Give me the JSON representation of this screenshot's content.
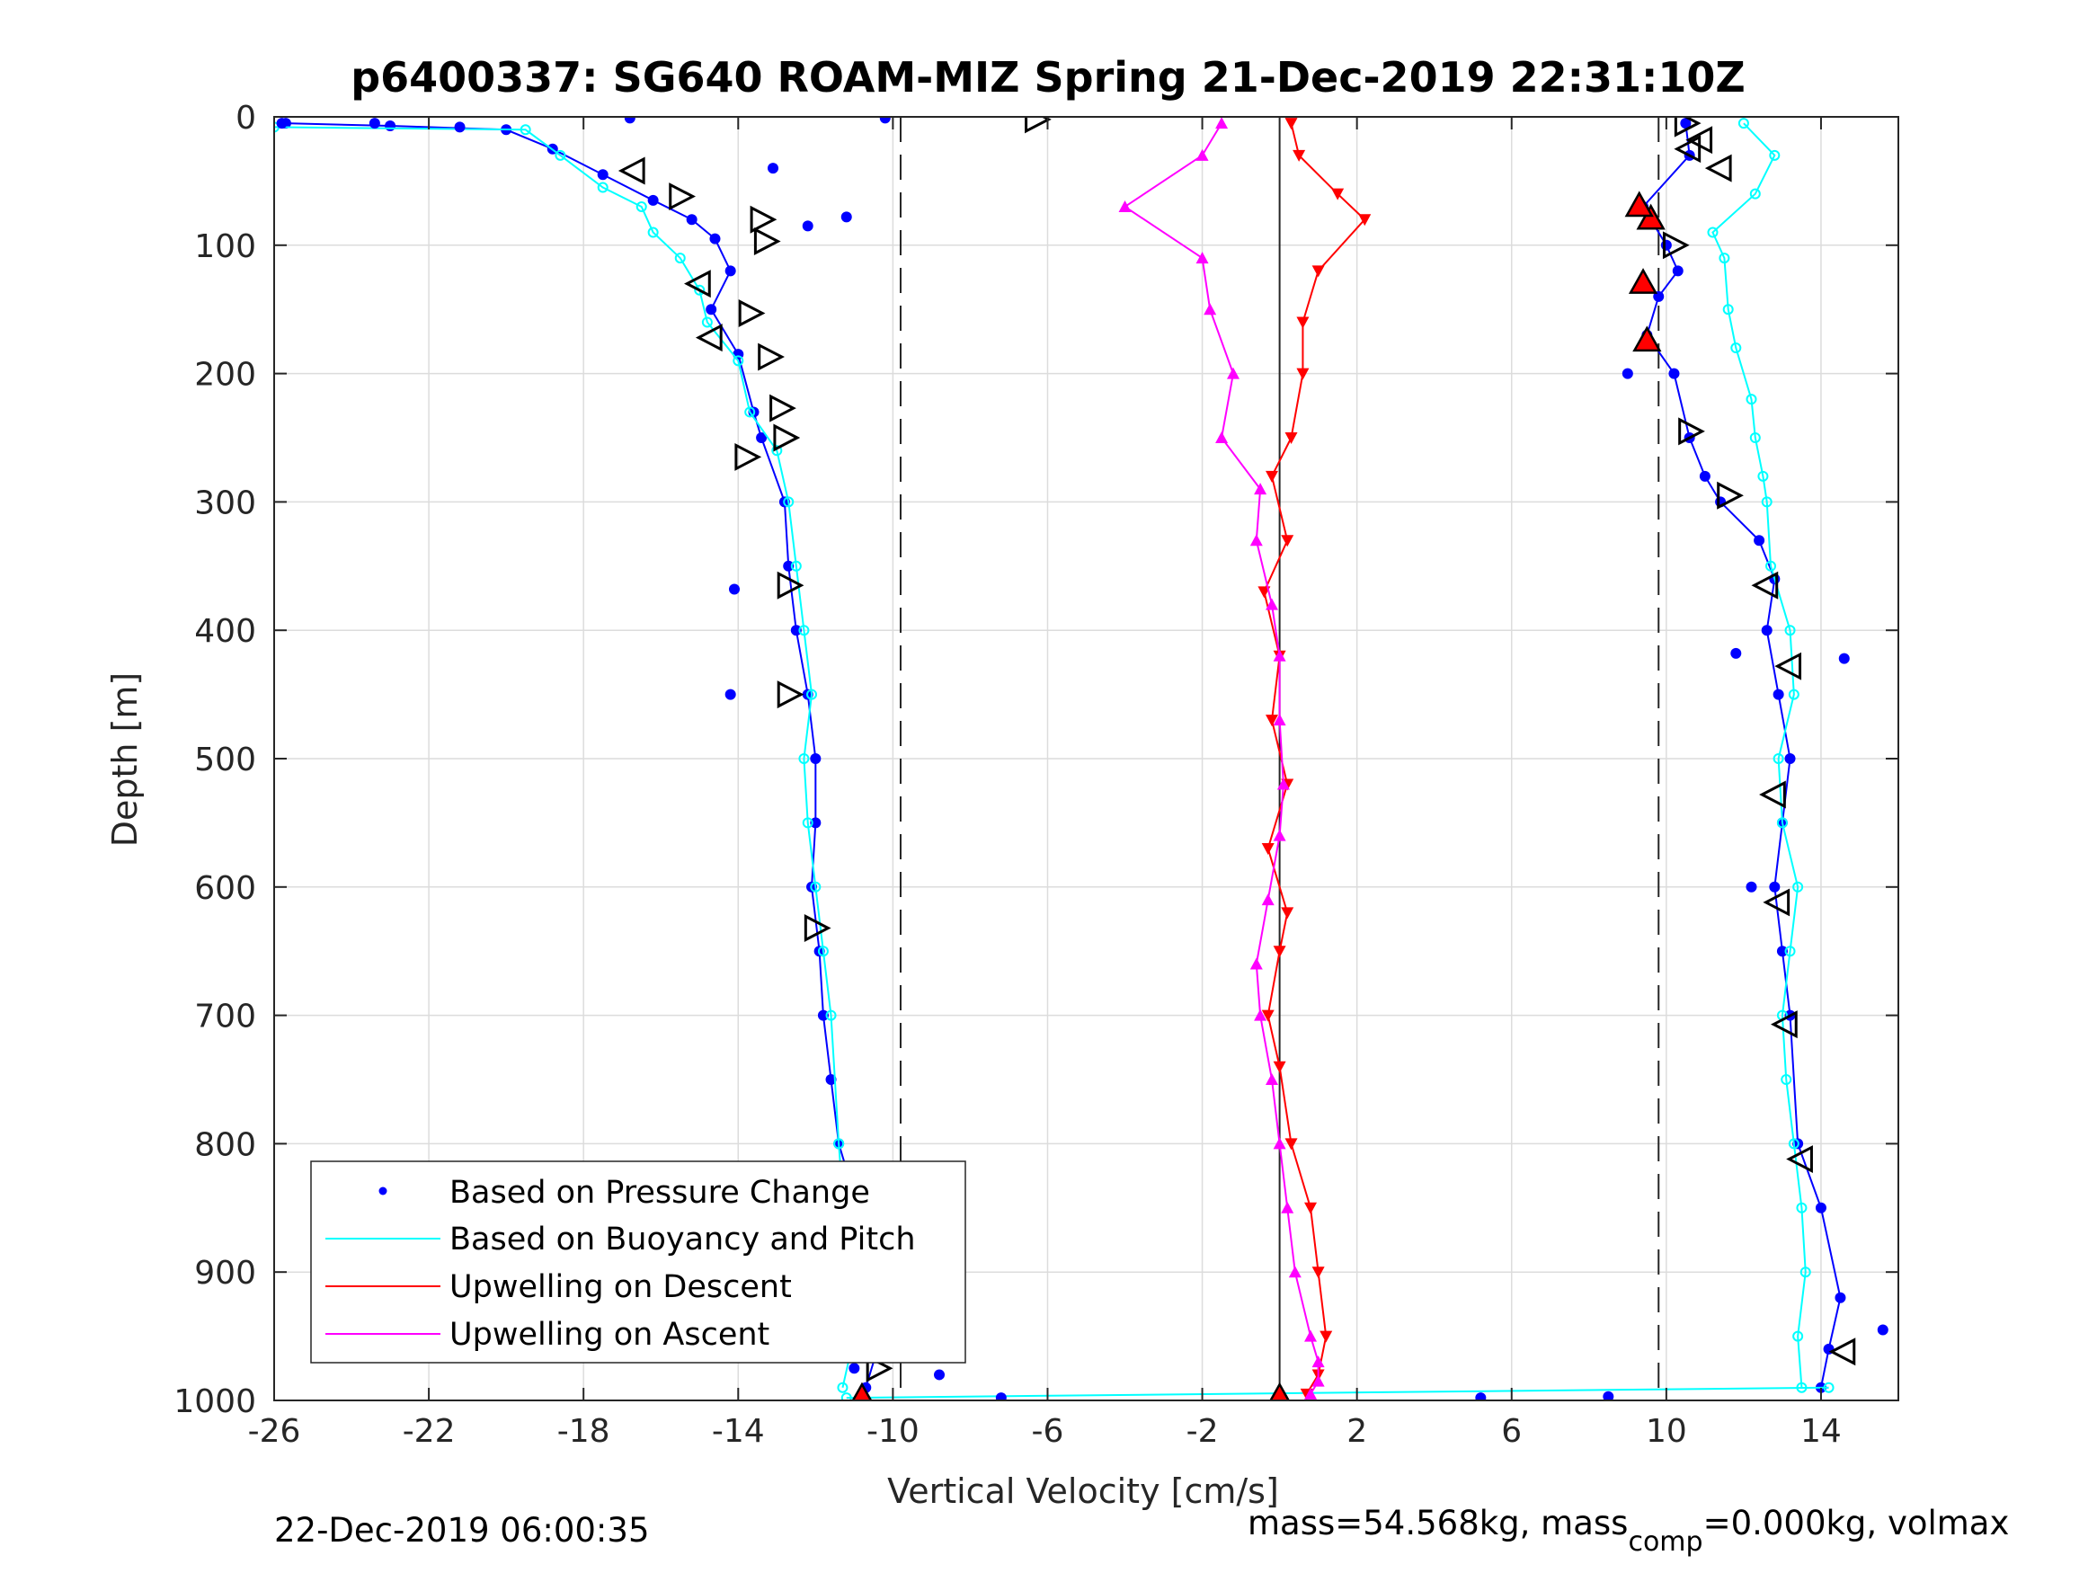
{
  "chart_data": {
    "type": "scatter",
    "title": "p6400337: SG640 ROAM-MIZ Spring 21-Dec-2019 22:31:10Z",
    "xlabel": "Vertical Velocity [cm/s]",
    "ylabel": "Depth [m]",
    "xlim": [
      -26,
      16
    ],
    "ylim": [
      0,
      1000
    ],
    "y_reversed": true,
    "grid": true,
    "x_ticks": [
      -26,
      -22,
      -18,
      -14,
      -10,
      -6,
      -2,
      2,
      6,
      10,
      14
    ],
    "y_ticks": [
      0,
      100,
      200,
      300,
      400,
      500,
      600,
      700,
      800,
      900,
      1000
    ],
    "x_tick_labels": [
      "-26",
      "-22",
      "-18",
      "-14",
      "-10",
      "-6",
      "-2",
      "2",
      "6",
      "10",
      "14"
    ],
    "y_tick_labels": [
      "0",
      "100",
      "200",
      "300",
      "400",
      "500",
      "600",
      "700",
      "800",
      "900",
      "1000"
    ],
    "reference_lines": {
      "dashed_x": [
        -9.8,
        9.8
      ],
      "solid_x": 0
    },
    "legend": {
      "placement": "bottom-left",
      "entries": [
        {
          "label": "Based on Pressure Change",
          "color": "#0000ff",
          "marker": "dot"
        },
        {
          "label": "Based on Buoyancy and Pitch",
          "color": "#00ffff",
          "marker": "line"
        },
        {
          "label": "Upwelling on Descent",
          "color": "#ff0000",
          "marker": "line"
        },
        {
          "label": "Upwelling on Ascent",
          "color": "#ff00ff",
          "marker": "line"
        }
      ]
    },
    "series": [
      {
        "name": "Based on Pressure Change",
        "color": "#0000ff",
        "segments": [
          {
            "x": [
              -25.7,
              -23,
              -20,
              -18.8,
              -17.5,
              -16.2,
              -15.2,
              -14.6,
              -14.2,
              -14.7,
              -14.0,
              -13.6,
              -13.4,
              -12.8,
              -12.7,
              -12.5,
              -12.2,
              -12.0,
              -12.0,
              -12.1,
              -11.9,
              -11.8,
              -11.6,
              -11.4,
              -10.9,
              -10.4,
              -10.4,
              -10.7
            ],
            "y": [
              5,
              7,
              10,
              25,
              45,
              65,
              80,
              95,
              120,
              150,
              185,
              230,
              250,
              300,
              350,
              400,
              450,
              500,
              550,
              600,
              650,
              700,
              750,
              800,
              850,
              900,
              960,
              990
            ]
          },
          {
            "x": [
              10.5,
              10.6,
              9.4,
              10.0,
              10.3,
              9.8,
              9.5,
              10.2,
              10.6,
              11.0,
              11.4,
              12.4,
              12.8,
              12.6,
              12.9,
              13.2,
              13.0,
              12.8,
              13.0,
              13.2,
              13.4,
              14.0,
              14.5,
              14.2,
              14.0
            ],
            "y": [
              5,
              30,
              70,
              100,
              120,
              140,
              170,
              200,
              250,
              280,
              300,
              330,
              360,
              400,
              450,
              500,
              550,
              600,
              650,
              700,
              800,
              850,
              920,
              960,
              990
            ]
          }
        ]
      },
      {
        "name": "Based on Buoyancy and Pitch",
        "color": "#00ffff",
        "segments": [
          {
            "x": [
              -26,
              -19.5,
              -18.6,
              -17.5,
              -16.5,
              -16.2,
              -15.5,
              -15.0,
              -14.8,
              -14.0,
              -13.7,
              -13.0,
              -12.7,
              -12.5,
              -12.3,
              -12.1,
              -12.3,
              -12.2,
              -12.0,
              -11.8,
              -11.6,
              -11.4,
              -11.2,
              -11.0,
              -11.3
            ],
            "y": [
              8,
              10,
              30,
              55,
              70,
              90,
              110,
              135,
              160,
              190,
              230,
              260,
              300,
              350,
              400,
              450,
              500,
              550,
              600,
              650,
              700,
              800,
              880,
              950,
              990
            ]
          },
          {
            "x": [
              12.0,
              12.8,
              12.3,
              11.2,
              11.5,
              11.6,
              11.8,
              12.2,
              12.3,
              12.5,
              12.6,
              12.7,
              13.2,
              13.3,
              12.9,
              13.0,
              13.4,
              13.2,
              13.0,
              13.1,
              13.3,
              13.5,
              13.6,
              13.4,
              13.5
            ],
            "y": [
              5,
              30,
              60,
              90,
              110,
              150,
              180,
              220,
              250,
              280,
              300,
              350,
              400,
              450,
              500,
              550,
              600,
              650,
              700,
              750,
              800,
              850,
              900,
              950,
              990
            ]
          },
          {
            "x": [
              -11.2,
              14.2
            ],
            "y": [
              998,
              990
            ]
          }
        ]
      },
      {
        "name": "Upwelling on Descent",
        "color": "#ff0000",
        "segments": [
          {
            "x": [
              0.3,
              0.5,
              1.5,
              2.2,
              1.0,
              0.6,
              0.6,
              0.3,
              -0.2,
              0.2,
              -0.4,
              0.0,
              -0.2,
              0.2,
              -0.3,
              0.2,
              0.0,
              -0.3,
              0.0,
              0.3,
              0.8,
              1.0,
              1.2,
              1.0,
              0.7
            ],
            "y": [
              5,
              30,
              60,
              80,
              120,
              160,
              200,
              250,
              280,
              330,
              370,
              420,
              470,
              520,
              570,
              620,
              650,
              700,
              740,
              800,
              850,
              900,
              950,
              980,
              995
            ]
          }
        ]
      },
      {
        "name": "Upwelling on Ascent",
        "color": "#ff00ff",
        "segments": [
          {
            "x": [
              -1.5,
              -2.0,
              -4.0,
              -2.0,
              -1.8,
              -1.2,
              -1.5,
              -0.5,
              -0.6,
              -0.2,
              0.0,
              0.0,
              0.1,
              0.0,
              -0.3,
              -0.6,
              -0.5,
              -0.2,
              0.0,
              0.2,
              0.4,
              0.8,
              1.0,
              1.0,
              0.8
            ],
            "y": [
              5,
              30,
              70,
              110,
              150,
              200,
              250,
              290,
              330,
              380,
              420,
              470,
              520,
              560,
              610,
              660,
              700,
              750,
              800,
              850,
              900,
              950,
              970,
              985,
              995
            ]
          }
        ]
      }
    ],
    "pressure_change_outliers": {
      "color": "#0000ff",
      "points": [
        {
          "x": -25.8,
          "y": 5
        },
        {
          "x": -23.4,
          "y": 5
        },
        {
          "x": -21.2,
          "y": 8
        },
        {
          "x": -16.8,
          "y": 1
        },
        {
          "x": -10.2,
          "y": 1
        },
        {
          "x": -11.2,
          "y": 78
        },
        {
          "x": -12.2,
          "y": 85
        },
        {
          "x": -13.1,
          "y": 40
        },
        {
          "x": -14.1,
          "y": 368
        },
        {
          "x": -14.2,
          "y": 450
        },
        {
          "x": -11.0,
          "y": 975
        },
        {
          "x": -8.8,
          "y": 980
        },
        {
          "x": -7.2,
          "y": 998
        },
        {
          "x": 5.2,
          "y": 998
        },
        {
          "x": 8.5,
          "y": 997
        },
        {
          "x": 15.6,
          "y": 945
        },
        {
          "x": 14.6,
          "y": 422
        },
        {
          "x": 11.8,
          "y": 418
        },
        {
          "x": 12.2,
          "y": 600
        },
        {
          "x": 9.0,
          "y": 200
        }
      ]
    },
    "descent_markers": {
      "color": "#ff0000",
      "points": [
        {
          "x": -10.8,
          "y": 998
        },
        {
          "x": 0.0,
          "y": 998
        },
        {
          "x": 9.5,
          "y": 175
        },
        {
          "x": 9.4,
          "y": 130
        },
        {
          "x": 9.6,
          "y": 80
        },
        {
          "x": 9.3,
          "y": 70
        }
      ]
    },
    "turning_markers_right": [
      {
        "x": -6.3,
        "y": 2
      },
      {
        "x": -15.5,
        "y": 62
      },
      {
        "x": -13.4,
        "y": 80
      },
      {
        "x": -13.3,
        "y": 97
      },
      {
        "x": -13.7,
        "y": 153
      },
      {
        "x": -13.2,
        "y": 187
      },
      {
        "x": -12.9,
        "y": 227
      },
      {
        "x": -12.8,
        "y": 250
      },
      {
        "x": -13.8,
        "y": 265
      },
      {
        "x": -12.7,
        "y": 365
      },
      {
        "x": -12.7,
        "y": 450
      },
      {
        "x": -12.0,
        "y": 632
      },
      {
        "x": -11.0,
        "y": 845
      },
      {
        "x": -10.4,
        "y": 975
      },
      {
        "x": 10.5,
        "y": 5
      },
      {
        "x": 10.2,
        "y": 100
      },
      {
        "x": 10.6,
        "y": 245
      },
      {
        "x": 11.6,
        "y": 295
      }
    ],
    "turning_markers_left": [
      {
        "x": -16.7,
        "y": 42
      },
      {
        "x": -15.0,
        "y": 130
      },
      {
        "x": -14.7,
        "y": 172
      },
      {
        "x": 10.9,
        "y": 18
      },
      {
        "x": 11.4,
        "y": 40
      },
      {
        "x": 10.6,
        "y": 25
      },
      {
        "x": 12.6,
        "y": 365
      },
      {
        "x": 13.2,
        "y": 428
      },
      {
        "x": 12.8,
        "y": 528
      },
      {
        "x": 12.9,
        "y": 612
      },
      {
        "x": 13.1,
        "y": 707
      },
      {
        "x": 13.5,
        "y": 812
      },
      {
        "x": 14.6,
        "y": 962
      }
    ]
  },
  "footer": {
    "timestamp": "22-Dec-2019 06:00:35",
    "mass_prefix": "mass=54.568kg, mass",
    "mass_subscript": "comp",
    "mass_suffix": "=0.000kg, volmax"
  }
}
